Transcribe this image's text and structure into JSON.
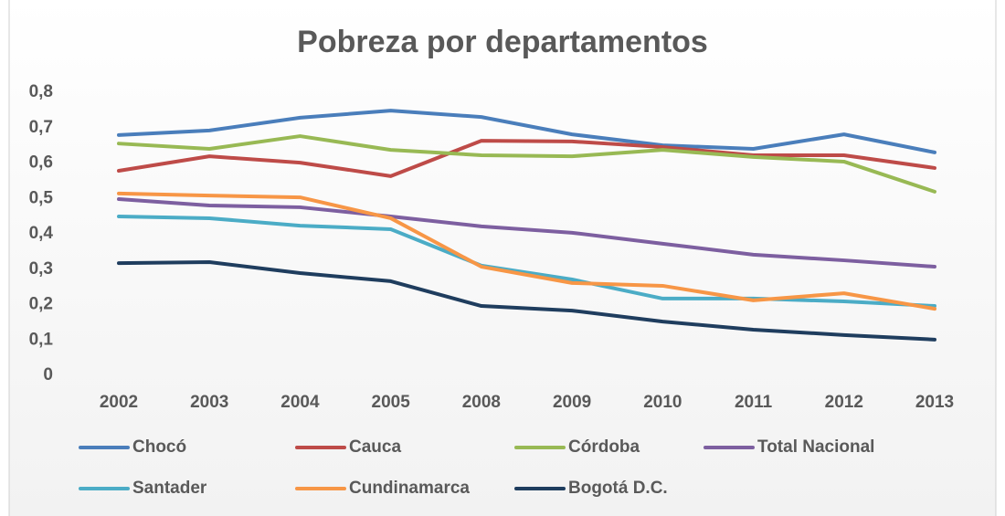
{
  "chart_data": {
    "type": "line",
    "title": "Pobreza por departamentos",
    "categories": [
      "2002",
      "2003",
      "2004",
      "2005",
      "2008",
      "2009",
      "2010",
      "2011",
      "2012",
      "2013"
    ],
    "series": [
      {
        "name": "Chocó",
        "color": "#4a7ebb",
        "values": [
          0.679,
          0.692,
          0.728,
          0.748,
          0.73,
          0.681,
          0.65,
          0.64,
          0.681,
          0.63
        ]
      },
      {
        "name": "Cauca",
        "color": "#be4b48",
        "values": [
          0.578,
          0.619,
          0.601,
          0.563,
          0.663,
          0.661,
          0.645,
          0.622,
          0.622,
          0.586
        ]
      },
      {
        "name": "Córdoba",
        "color": "#98b954",
        "values": [
          0.655,
          0.64,
          0.676,
          0.637,
          0.622,
          0.619,
          0.637,
          0.617,
          0.604,
          0.519
        ]
      },
      {
        "name": "Total Nacional",
        "color": "#7d5fa0",
        "values": [
          0.498,
          0.48,
          0.475,
          0.449,
          0.421,
          0.403,
          0.372,
          0.341,
          0.325,
          0.307
        ]
      },
      {
        "name": "Santader",
        "color": "#4bacc6",
        "values": [
          0.449,
          0.444,
          0.423,
          0.413,
          0.31,
          0.271,
          0.217,
          0.217,
          0.209,
          0.196
        ]
      },
      {
        "name": "Cundinamarca",
        "color": "#f79646",
        "values": [
          0.514,
          0.508,
          0.503,
          0.444,
          0.307,
          0.261,
          0.253,
          0.212,
          0.232,
          0.188
        ]
      },
      {
        "name": "Bogotá D.C.",
        "color": "#1f3d5e",
        "values": [
          0.317,
          0.32,
          0.289,
          0.266,
          0.196,
          0.183,
          0.152,
          0.129,
          0.114,
          0.101
        ]
      }
    ],
    "ylim": [
      0,
      0.8
    ],
    "yticks": [
      0,
      {
        "value": 0.1,
        "label": "0,1"
      },
      {
        "value": 0.2,
        "label": "0,2"
      },
      {
        "value": 0.3,
        "label": "0,3"
      },
      {
        "value": 0.4,
        "label": "0,4"
      },
      {
        "value": 0.5,
        "label": "0,5"
      },
      {
        "value": 0.6,
        "label": "0,6"
      },
      {
        "value": 0.7,
        "label": "0,7"
      },
      {
        "value": 0.8,
        "label": "0,8"
      }
    ],
    "legend": "bottom"
  }
}
